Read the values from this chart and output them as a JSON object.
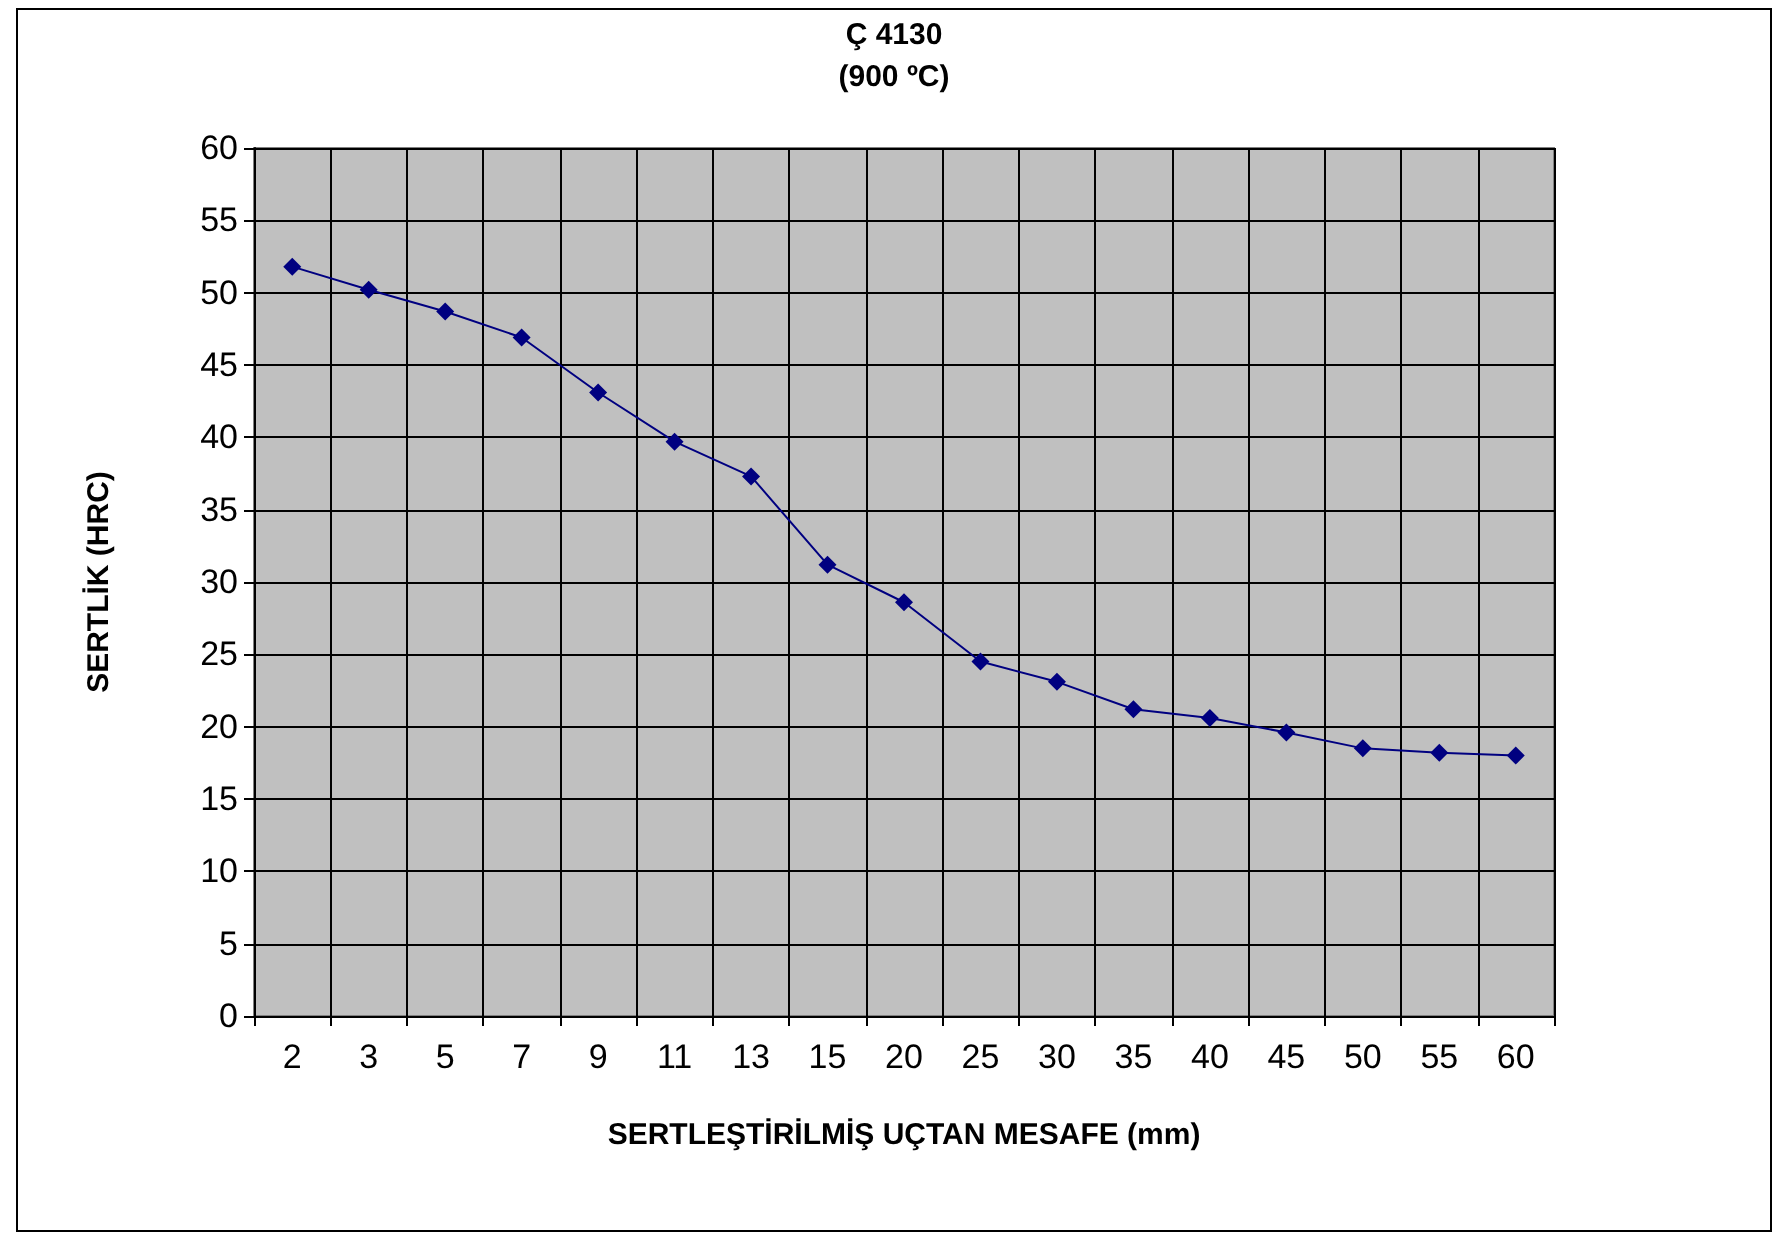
{
  "chart_data": {
    "type": "line",
    "title": "Ç 4130",
    "subtitle": "(900 ºC)",
    "xlabel": "SERTLEŞTİRİLMİŞ UÇTAN MESAFE (mm)",
    "ylabel": "SERTLİK (HRC)",
    "categories": [
      "2",
      "3",
      "5",
      "7",
      "9",
      "11",
      "13",
      "15",
      "20",
      "25",
      "30",
      "35",
      "40",
      "45",
      "50",
      "55",
      "60"
    ],
    "series": [
      {
        "color": "#000080",
        "values": [
          51.8,
          50.2,
          48.7,
          46.9,
          43.1,
          39.7,
          37.3,
          31.2,
          28.6,
          24.5,
          23.1,
          21.2,
          20.6,
          19.6,
          18.5,
          18.2,
          18.0
        ]
      }
    ],
    "ylim": [
      0,
      60
    ],
    "yticks": [
      0,
      5,
      10,
      15,
      20,
      25,
      30,
      35,
      40,
      45,
      50,
      55,
      60
    ],
    "grid": true,
    "marker": "diamond",
    "line_style": "solid"
  }
}
